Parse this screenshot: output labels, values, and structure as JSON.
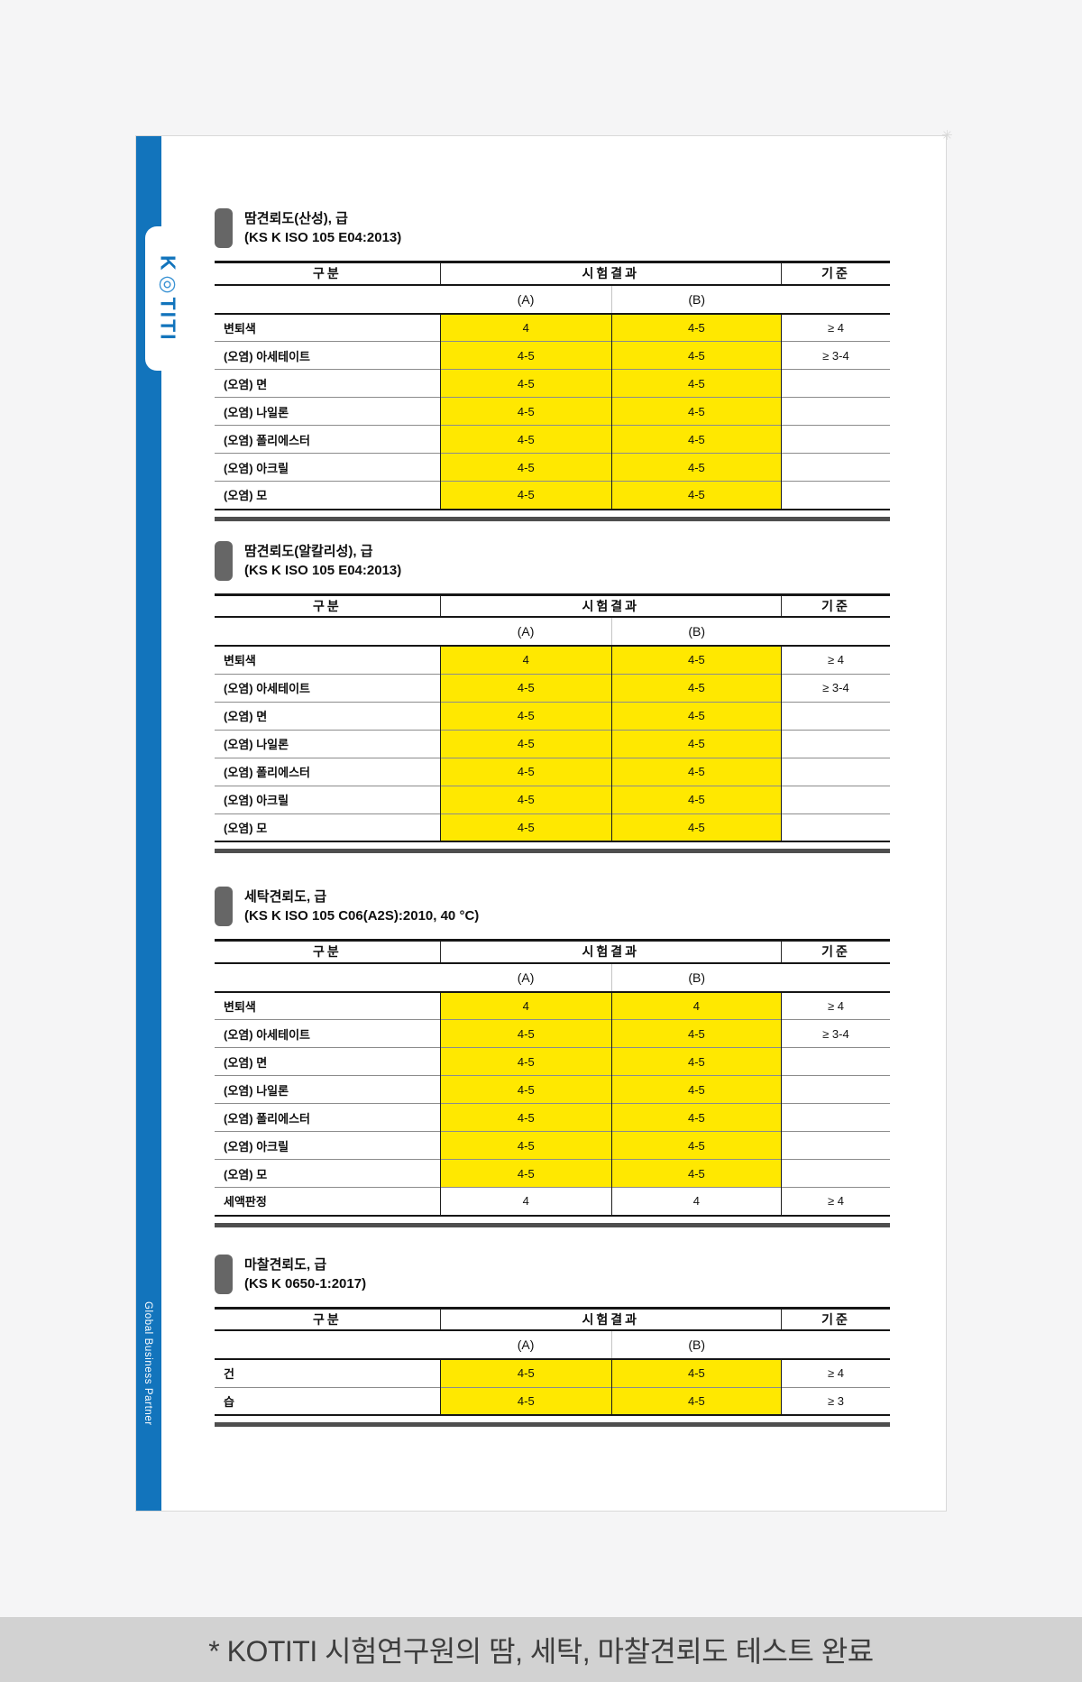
{
  "brand": {
    "logo_k": "K",
    "logo_o": "◎",
    "logo_rest": "TITI",
    "tagline": "Global Business Partner",
    "sparkle": "✳"
  },
  "colors": {
    "accent_blue": "#1274bc",
    "highlight_yellow": "#ffe800",
    "bullet_gray": "#666666",
    "banner_bg": "#d2d2d2"
  },
  "table_headers": {
    "category": "구분",
    "result": "시험결과",
    "sub_a": "(A)",
    "sub_b": "(B)",
    "standard": "기준"
  },
  "footer_note": "* KOTITI 시험연구원의 땀, 세탁, 마찰견뢰도 테스트 완료",
  "sections": [
    {
      "title": "땀견뢰도(산성), 급",
      "subtitle": "(KS K ISO 105 E04:2013)",
      "rows": [
        {
          "label": "변퇴색",
          "a": "4",
          "b": "4-5",
          "std": "≥ 4",
          "hl": true
        },
        {
          "label": "(오염) 아세테이트",
          "a": "4-5",
          "b": "4-5",
          "std": "≥ 3-4",
          "hl": true
        },
        {
          "label": "(오염) 면",
          "a": "4-5",
          "b": "4-5",
          "std": "",
          "hl": true
        },
        {
          "label": "(오염) 나일론",
          "a": "4-5",
          "b": "4-5",
          "std": "",
          "hl": true
        },
        {
          "label": "(오염) 폴리에스터",
          "a": "4-5",
          "b": "4-5",
          "std": "",
          "hl": true
        },
        {
          "label": "(오염) 아크릴",
          "a": "4-5",
          "b": "4-5",
          "std": "",
          "hl": true
        },
        {
          "label": "(오염) 모",
          "a": "4-5",
          "b": "4-5",
          "std": "",
          "hl": true
        }
      ]
    },
    {
      "title": "땀견뢰도(알칼리성), 급",
      "subtitle": "(KS K ISO 105 E04:2013)",
      "rows": [
        {
          "label": "변퇴색",
          "a": "4",
          "b": "4-5",
          "std": "≥ 4",
          "hl": true
        },
        {
          "label": "(오염) 아세테이트",
          "a": "4-5",
          "b": "4-5",
          "std": "≥ 3-4",
          "hl": true
        },
        {
          "label": "(오염) 면",
          "a": "4-5",
          "b": "4-5",
          "std": "",
          "hl": true
        },
        {
          "label": "(오염) 나일론",
          "a": "4-5",
          "b": "4-5",
          "std": "",
          "hl": true
        },
        {
          "label": "(오염) 폴리에스터",
          "a": "4-5",
          "b": "4-5",
          "std": "",
          "hl": true
        },
        {
          "label": "(오염) 아크릴",
          "a": "4-5",
          "b": "4-5",
          "std": "",
          "hl": true
        },
        {
          "label": "(오염) 모",
          "a": "4-5",
          "b": "4-5",
          "std": "",
          "hl": true
        }
      ]
    },
    {
      "title": "세탁견뢰도, 급",
      "subtitle": "(KS K ISO 105 C06(A2S):2010, 40 °C)",
      "rows": [
        {
          "label": "변퇴색",
          "a": "4",
          "b": "4",
          "std": "≥ 4",
          "hl": true
        },
        {
          "label": "(오염) 아세테이트",
          "a": "4-5",
          "b": "4-5",
          "std": "≥ 3-4",
          "hl": true
        },
        {
          "label": "(오염) 면",
          "a": "4-5",
          "b": "4-5",
          "std": "",
          "hl": true
        },
        {
          "label": "(오염) 나일론",
          "a": "4-5",
          "b": "4-5",
          "std": "",
          "hl": true
        },
        {
          "label": "(오염) 폴리에스터",
          "a": "4-5",
          "b": "4-5",
          "std": "",
          "hl": true
        },
        {
          "label": "(오염) 아크릴",
          "a": "4-5",
          "b": "4-5",
          "std": "",
          "hl": true
        },
        {
          "label": "(오염) 모",
          "a": "4-5",
          "b": "4-5",
          "std": "",
          "hl": true
        },
        {
          "label": "세액판정",
          "a": "4",
          "b": "4",
          "std": "≥ 4",
          "hl": false
        }
      ]
    },
    {
      "title": "마찰견뢰도, 급",
      "subtitle": "(KS K 0650-1:2017)",
      "rows": [
        {
          "label": "건",
          "a": "4-5",
          "b": "4-5",
          "std": "≥ 4",
          "hl": true
        },
        {
          "label": "습",
          "a": "4-5",
          "b": "4-5",
          "std": "≥ 3",
          "hl": true
        }
      ]
    }
  ]
}
